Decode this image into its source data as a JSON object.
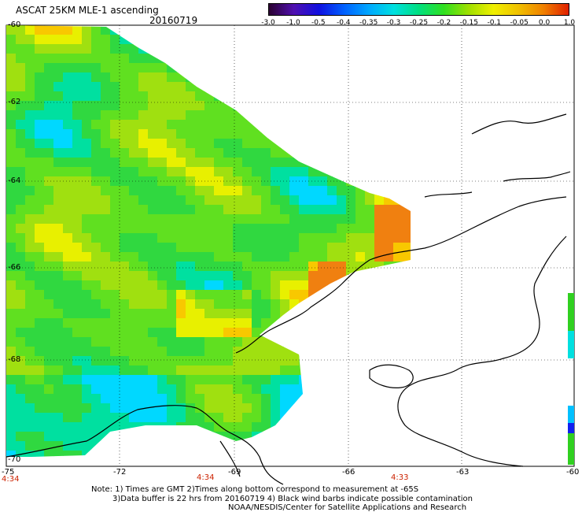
{
  "header": {
    "title": "ASCAT 25KM MLE-1 ascending",
    "date": "20160719"
  },
  "colorbar": {
    "labels": [
      "-3.0",
      "-1.0",
      "-0.5",
      "-0.4",
      "-0.35",
      "-0.3",
      "-0.25",
      "-0.2",
      "-0.15",
      "-0.1",
      "-0.05",
      "0.0",
      "1.0"
    ],
    "colors": [
      "#2a0030",
      "#5010b0",
      "#1010e0",
      "#0060ff",
      "#00a8ff",
      "#00e0e0",
      "#00e080",
      "#30e020",
      "#a0e000",
      "#f0f000",
      "#f0c000",
      "#f08000",
      "#e02000"
    ]
  },
  "axes": {
    "lat_labels": [
      "-60",
      "-62",
      "-64",
      "-66",
      "-68",
      "-70"
    ],
    "lon_labels": [
      "-75",
      "-72",
      "-69",
      "-66",
      "-63",
      "-60"
    ]
  },
  "times": [
    "4:34",
    "4:34",
    "4:33"
  ],
  "notes": [
    "Note: 1) Times are GMT 2)Times along bottom correspond to measurement at -65S",
    "3)Data buffer is 22 hrs from 20160719 4) Black wind barbs indicate possible contamination",
    "NOAA/NESDIS/Center for Satellite Applications and Research"
  ]
}
